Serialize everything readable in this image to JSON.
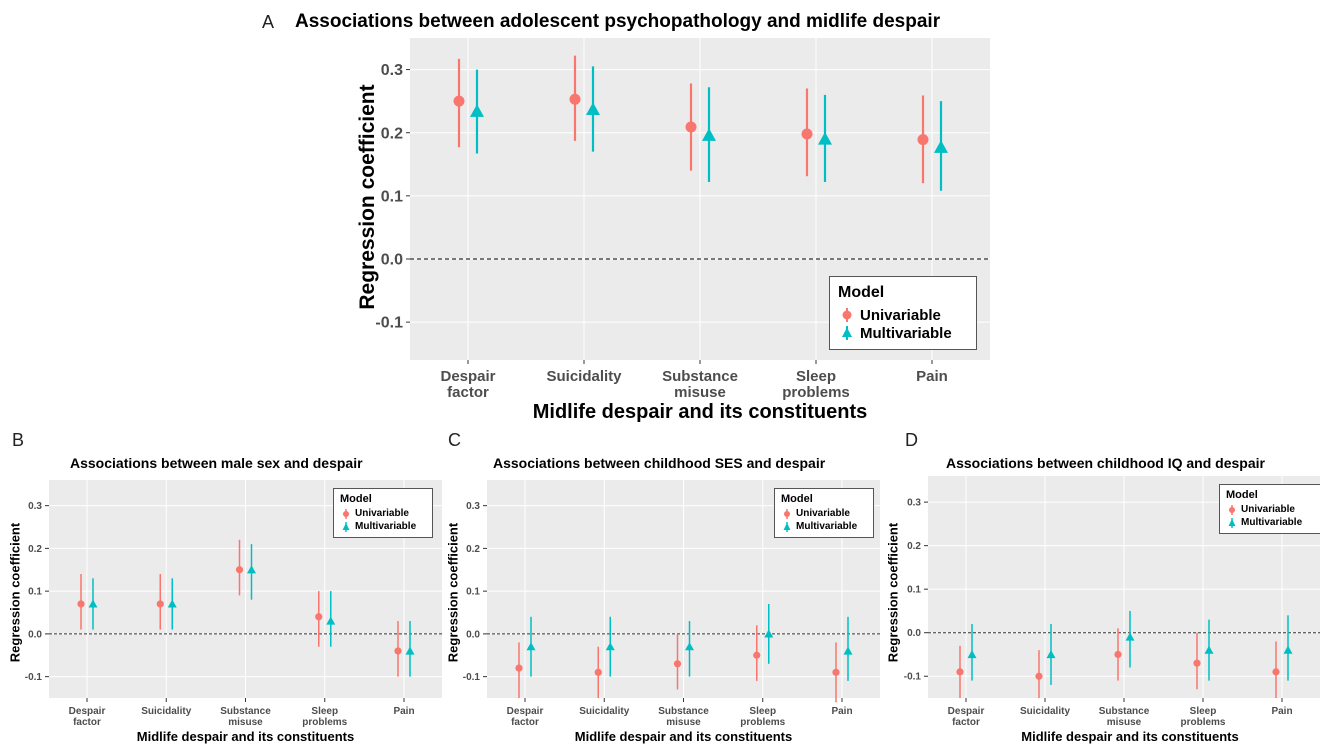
{
  "chart_data": [
    {
      "type": "scatter",
      "panel_label": "A",
      "title": "Associations between adolescent psychopathology and midlife despair",
      "xlabel": "Midlife despair and its constituents",
      "ylabel": "Regression coefficient",
      "categories": [
        "Despair\nfactor",
        "Suicidality",
        "Substance\nmisuse",
        "Sleep\nproblems",
        "Pain"
      ],
      "ylim": [
        -0.16,
        0.35
      ],
      "yticks": [
        -0.1,
        0.0,
        0.1,
        0.2,
        0.3
      ],
      "reference_line": 0.0,
      "legend": {
        "title": "Model",
        "position": "bottom-right"
      },
      "series": [
        {
          "name": "Univariable",
          "color": "#F8766D",
          "marker": "circle",
          "values": [
            0.25,
            0.253,
            0.209,
            0.198,
            0.189
          ],
          "lower": [
            0.177,
            0.187,
            0.14,
            0.131,
            0.12
          ],
          "upper": [
            0.317,
            0.322,
            0.278,
            0.27,
            0.259
          ]
        },
        {
          "name": "Multivariable",
          "color": "#00BFC4",
          "marker": "triangle",
          "values": [
            0.234,
            0.237,
            0.196,
            0.19,
            0.177
          ],
          "lower": [
            0.167,
            0.17,
            0.122,
            0.122,
            0.108
          ],
          "upper": [
            0.3,
            0.305,
            0.272,
            0.26,
            0.25
          ]
        }
      ]
    },
    {
      "type": "scatter",
      "panel_label": "B",
      "title": "Associations between male sex and despair",
      "xlabel": "Midlife despair and its constituents",
      "ylabel": "Regression coefficient",
      "categories": [
        "Despair\nfactor",
        "Suicidality",
        "Substance\nmisuse",
        "Sleep\nproblems",
        "Pain"
      ],
      "ylim": [
        -0.15,
        0.36
      ],
      "yticks": [
        -0.1,
        0.0,
        0.1,
        0.2,
        0.3
      ],
      "reference_line": 0.0,
      "legend": {
        "title": "Model",
        "position": "top-right"
      },
      "series": [
        {
          "name": "Univariable",
          "color": "#F8766D",
          "marker": "circle",
          "values": [
            0.07,
            0.07,
            0.15,
            0.04,
            -0.04
          ],
          "lower": [
            0.01,
            0.01,
            0.09,
            -0.03,
            -0.1
          ],
          "upper": [
            0.14,
            0.14,
            0.22,
            0.1,
            0.03
          ]
        },
        {
          "name": "Multivariable",
          "color": "#00BFC4",
          "marker": "triangle",
          "values": [
            0.07,
            0.07,
            0.15,
            0.03,
            -0.04
          ],
          "lower": [
            0.01,
            0.01,
            0.08,
            -0.03,
            -0.1
          ],
          "upper": [
            0.13,
            0.13,
            0.21,
            0.1,
            0.03
          ]
        }
      ]
    },
    {
      "type": "scatter",
      "panel_label": "C",
      "title": "Associations between childhood SES and despair",
      "xlabel": "Midlife despair and its constituents",
      "ylabel": "Regression coefficient",
      "categories": [
        "Despair\nfactor",
        "Suicidality",
        "Substance\nmisuse",
        "Sleep\nproblems",
        "Pain"
      ],
      "ylim": [
        -0.15,
        0.36
      ],
      "yticks": [
        -0.1,
        0.0,
        0.1,
        0.2,
        0.3
      ],
      "reference_line": 0.0,
      "legend": {
        "title": "Model",
        "position": "top-right"
      },
      "series": [
        {
          "name": "Univariable",
          "color": "#F8766D",
          "marker": "circle",
          "values": [
            -0.08,
            -0.09,
            -0.07,
            -0.05,
            -0.09
          ],
          "lower": [
            -0.15,
            -0.15,
            -0.13,
            -0.11,
            -0.16
          ],
          "upper": [
            -0.02,
            -0.03,
            0.0,
            0.02,
            -0.02
          ]
        },
        {
          "name": "Multivariable",
          "color": "#00BFC4",
          "marker": "triangle",
          "values": [
            -0.03,
            -0.03,
            -0.03,
            0.0,
            -0.04
          ],
          "lower": [
            -0.1,
            -0.1,
            -0.1,
            -0.07,
            -0.11
          ],
          "upper": [
            0.04,
            0.04,
            0.03,
            0.07,
            0.04
          ]
        }
      ]
    },
    {
      "type": "scatter",
      "panel_label": "D",
      "title": "Associations between childhood IQ and despair",
      "xlabel": "Midlife despair and its constituents",
      "ylabel": "Regression coefficient",
      "categories": [
        "Despair\nfactor",
        "Suicidality",
        "Substance\nmisuse",
        "Sleep\nproblems",
        "Pain"
      ],
      "ylim": [
        -0.15,
        0.36
      ],
      "yticks": [
        -0.1,
        0.0,
        0.1,
        0.2,
        0.3
      ],
      "reference_line": 0.0,
      "legend": {
        "title": "Model",
        "position": "top-right"
      },
      "series": [
        {
          "name": "Univariable",
          "color": "#F8766D",
          "marker": "circle",
          "values": [
            -0.09,
            -0.1,
            -0.05,
            -0.07,
            -0.09
          ],
          "lower": [
            -0.15,
            -0.15,
            -0.11,
            -0.13,
            -0.15
          ],
          "upper": [
            -0.03,
            -0.04,
            0.01,
            0.0,
            -0.02
          ]
        },
        {
          "name": "Multivariable",
          "color": "#00BFC4",
          "marker": "triangle",
          "values": [
            -0.05,
            -0.05,
            -0.01,
            -0.04,
            -0.04
          ],
          "lower": [
            -0.11,
            -0.12,
            -0.08,
            -0.11,
            -0.11
          ],
          "upper": [
            0.02,
            0.02,
            0.05,
            0.03,
            0.04
          ]
        }
      ]
    }
  ]
}
